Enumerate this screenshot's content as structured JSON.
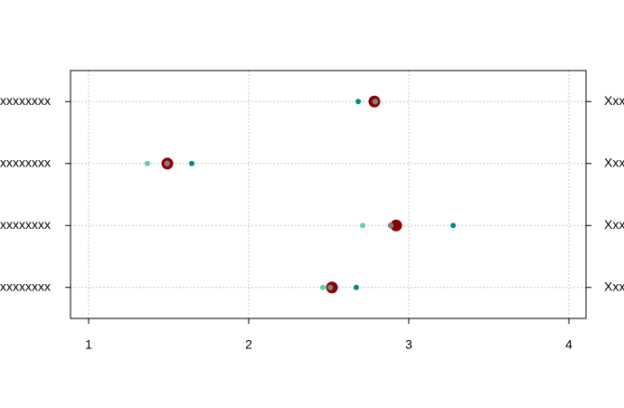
{
  "chart_data": {
    "type": "dotplot",
    "categories": [
      "Xxxxxxxxxxxx",
      "Xxxxxxxxxxxx",
      "Xxxxxxxxxxxx",
      "Xxxxxxxxxxxx"
    ],
    "series": [
      {
        "color": "#66cdaa",
        "values": [
          2.797,
          1.367,
          2.712,
          2.463
        ]
      },
      {
        "color": "#008b8b",
        "values": [
          2.684,
          1.644,
          3.277,
          2.672
        ]
      },
      {
        "color": "#8b0000",
        "values": [
          2.785,
          1.492,
          2.921,
          2.52
        ]
      },
      {
        "color": "#808080",
        "values": [
          2.79,
          1.49,
          2.887,
          2.51
        ]
      }
    ],
    "xlim": [
      0.887,
      4.107
    ],
    "xticks": [
      1,
      2,
      3,
      4
    ],
    "grid": true
  }
}
